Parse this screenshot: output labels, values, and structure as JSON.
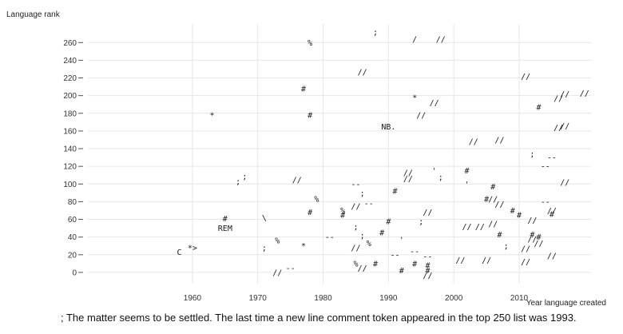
{
  "chart_data": {
    "type": "scatter",
    "title": "",
    "xlabel": "Year language created",
    "ylabel": "Language rank",
    "xlim": [
      1944,
      2021
    ],
    "ylim": [
      -10,
      272
    ],
    "xticks": [
      1960,
      1970,
      1980,
      1990,
      2000,
      2010
    ],
    "yticks": [
      0,
      20,
      40,
      60,
      80,
      100,
      120,
      140,
      160,
      180,
      200,
      220,
      240,
      260
    ],
    "grid": true,
    "points": [
      {
        "x": 1958,
        "y": 23,
        "token": "C"
      },
      {
        "x": 1960,
        "y": 28,
        "token": "*>"
      },
      {
        "x": 1963,
        "y": 178,
        "token": "*"
      },
      {
        "x": 1965,
        "y": 61,
        "token": "#"
      },
      {
        "x": 1965,
        "y": 50,
        "token": "REM"
      },
      {
        "x": 1967,
        "y": 103,
        "token": ";"
      },
      {
        "x": 1968,
        "y": 109,
        "token": ";"
      },
      {
        "x": 1971,
        "y": 62,
        "token": "\\"
      },
      {
        "x": 1971,
        "y": 28,
        "token": ";"
      },
      {
        "x": 1973,
        "y": 36,
        "token": "%"
      },
      {
        "x": 1973,
        "y": 0,
        "token": "//"
      },
      {
        "x": 1975,
        "y": 5,
        "token": "--"
      },
      {
        "x": 1976,
        "y": 105,
        "token": "//"
      },
      {
        "x": 1977,
        "y": 208,
        "token": "#"
      },
      {
        "x": 1977,
        "y": 30,
        "token": "*"
      },
      {
        "x": 1978,
        "y": 260,
        "token": "%"
      },
      {
        "x": 1978,
        "y": 178,
        "token": "#"
      },
      {
        "x": 1978,
        "y": 68,
        "token": "#"
      },
      {
        "x": 1979,
        "y": 83,
        "token": "%"
      },
      {
        "x": 1981,
        "y": 40,
        "token": "--"
      },
      {
        "x": 1983,
        "y": 70,
        "token": "%"
      },
      {
        "x": 1983,
        "y": 65,
        "token": "#"
      },
      {
        "x": 1985,
        "y": 100,
        "token": "--"
      },
      {
        "x": 1985,
        "y": 75,
        "token": "//"
      },
      {
        "x": 1985,
        "y": 52,
        "token": ";"
      },
      {
        "x": 1985,
        "y": 28,
        "token": "//"
      },
      {
        "x": 1985,
        "y": 10,
        "token": "%"
      },
      {
        "x": 1986,
        "y": 227,
        "token": "//"
      },
      {
        "x": 1986,
        "y": 90,
        "token": ";"
      },
      {
        "x": 1986,
        "y": 42,
        "token": ";"
      },
      {
        "x": 1986,
        "y": 5,
        "token": "//"
      },
      {
        "x": 1987,
        "y": 78,
        "token": "--"
      },
      {
        "x": 1987,
        "y": 33,
        "token": "%"
      },
      {
        "x": 1988,
        "y": 272,
        "token": ";"
      },
      {
        "x": 1988,
        "y": 10,
        "token": "#"
      },
      {
        "x": 1989,
        "y": 45,
        "token": "#"
      },
      {
        "x": 1990,
        "y": 165,
        "token": "NB."
      },
      {
        "x": 1990,
        "y": 58,
        "token": "#"
      },
      {
        "x": 1991,
        "y": 92,
        "token": "#"
      },
      {
        "x": 1991,
        "y": 20,
        "token": "--"
      },
      {
        "x": 1992,
        "y": 37,
        "token": "'"
      },
      {
        "x": 1992,
        "y": 2,
        "token": "#"
      },
      {
        "x": 1993,
        "y": 113,
        "token": "//"
      },
      {
        "x": 1993,
        "y": 106,
        "token": "//"
      },
      {
        "x": 1994,
        "y": 264,
        "token": "/"
      },
      {
        "x": 1994,
        "y": 198,
        "token": "*"
      },
      {
        "x": 1994,
        "y": 24,
        "token": "--"
      },
      {
        "x": 1994,
        "y": 10,
        "token": "#"
      },
      {
        "x": 1995,
        "y": 178,
        "token": "//"
      },
      {
        "x": 1995,
        "y": 58,
        "token": ";"
      },
      {
        "x": 1996,
        "y": 68,
        "token": "//"
      },
      {
        "x": 1996,
        "y": 18,
        "token": "--"
      },
      {
        "x": 1996,
        "y": 8,
        "token": "#"
      },
      {
        "x": 1996,
        "y": 2,
        "token": "#"
      },
      {
        "x": 1996,
        "y": -3,
        "token": "//"
      },
      {
        "x": 1997,
        "y": 192,
        "token": "//"
      },
      {
        "x": 1997,
        "y": 115,
        "token": "'"
      },
      {
        "x": 1998,
        "y": 264,
        "token": "//"
      },
      {
        "x": 1998,
        "y": 108,
        "token": ";"
      },
      {
        "x": 2001,
        "y": 14,
        "token": "//"
      },
      {
        "x": 2002,
        "y": 115,
        "token": "#"
      },
      {
        "x": 2002,
        "y": 100,
        "token": "'"
      },
      {
        "x": 2002,
        "y": 52,
        "token": "//"
      },
      {
        "x": 2003,
        "y": 148,
        "token": "//"
      },
      {
        "x": 2004,
        "y": 52,
        "token": "//"
      },
      {
        "x": 2005,
        "y": 83,
        "token": "#"
      },
      {
        "x": 2005,
        "y": 14,
        "token": "//"
      },
      {
        "x": 2006,
        "y": 83,
        "token": "//"
      },
      {
        "x": 2006,
        "y": 97,
        "token": "#"
      },
      {
        "x": 2006,
        "y": 55,
        "token": "//"
      },
      {
        "x": 2007,
        "y": 150,
        "token": "//"
      },
      {
        "x": 2007,
        "y": 43,
        "token": "#"
      },
      {
        "x": 2007,
        "y": 77,
        "token": "//"
      },
      {
        "x": 2008,
        "y": 30,
        "token": ";"
      },
      {
        "x": 2009,
        "y": 70,
        "token": "#"
      },
      {
        "x": 2010,
        "y": 65,
        "token": "#"
      },
      {
        "x": 2011,
        "y": 222,
        "token": "//"
      },
      {
        "x": 2011,
        "y": 12,
        "token": "//"
      },
      {
        "x": 2011,
        "y": 27,
        "token": "//"
      },
      {
        "x": 2012,
        "y": 134,
        "token": ";"
      },
      {
        "x": 2012,
        "y": 59,
        "token": "//"
      },
      {
        "x": 2012,
        "y": 43,
        "token": "#"
      },
      {
        "x": 2012,
        "y": 38,
        "token": "//"
      },
      {
        "x": 2013,
        "y": 187,
        "token": "#"
      },
      {
        "x": 2013,
        "y": 40,
        "token": "#"
      },
      {
        "x": 2013,
        "y": 33,
        "token": "//"
      },
      {
        "x": 2014,
        "y": 120,
        "token": "--"
      },
      {
        "x": 2014,
        "y": 80,
        "token": "--"
      },
      {
        "x": 2015,
        "y": 130,
        "token": "--"
      },
      {
        "x": 2015,
        "y": 70,
        "token": "//"
      },
      {
        "x": 2015,
        "y": 66,
        "token": "#"
      },
      {
        "x": 2015,
        "y": 19,
        "token": "//"
      },
      {
        "x": 2016,
        "y": 197,
        "token": "//"
      },
      {
        "x": 2016,
        "y": 164,
        "token": "//"
      },
      {
        "x": 2017,
        "y": 202,
        "token": "//"
      },
      {
        "x": 2017,
        "y": 166,
        "token": "//"
      },
      {
        "x": 2017,
        "y": 102,
        "token": "//"
      },
      {
        "x": 2020,
        "y": 203,
        "token": "//"
      }
    ]
  },
  "caption": "; The matter seems to be settled. The last time a new line comment token appeared in the top 250 list was 1993."
}
